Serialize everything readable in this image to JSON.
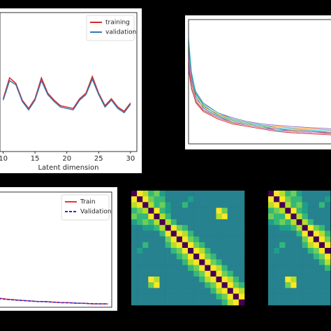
{
  "chart_data": [
    {
      "type": "line",
      "xlabel": "Latent dimension",
      "x": [
        10,
        11,
        12,
        13,
        14,
        15,
        16,
        17,
        18,
        19,
        20,
        21,
        22,
        23,
        24,
        25,
        26,
        27,
        28,
        29,
        30
      ],
      "xlim": [
        9.5,
        31
      ],
      "xticks": [
        10,
        15,
        20,
        25,
        30
      ],
      "ylim": [
        0,
        1
      ],
      "legend": "upper right",
      "series": [
        {
          "name": "training",
          "color": "#d62728",
          "linestyle": "solid",
          "values": [
            0.38,
            0.53,
            0.49,
            0.37,
            0.31,
            0.38,
            0.53,
            0.42,
            0.37,
            0.33,
            0.32,
            0.31,
            0.38,
            0.42,
            0.54,
            0.42,
            0.33,
            0.38,
            0.32,
            0.29,
            0.35
          ]
        },
        {
          "name": "validation",
          "color": "#3b75af",
          "linestyle": "solid",
          "values": [
            0.37,
            0.51,
            0.48,
            0.36,
            0.3,
            0.37,
            0.51,
            0.41,
            0.36,
            0.32,
            0.31,
            0.3,
            0.37,
            0.41,
            0.52,
            0.41,
            0.32,
            0.37,
            0.31,
            0.28,
            0.34
          ]
        }
      ]
    },
    {
      "type": "line",
      "x": [
        0,
        2,
        5,
        10,
        20,
        30,
        40,
        50,
        60,
        70,
        85,
        100
      ],
      "xlim": [
        0,
        100
      ],
      "ylim": [
        0,
        1
      ],
      "series": [
        {
          "color": "#1f77b4",
          "linestyle": "solid",
          "values": [
            0.78,
            0.52,
            0.38,
            0.29,
            0.22,
            0.18,
            0.15,
            0.13,
            0.11,
            0.1,
            0.09,
            0.08
          ]
        },
        {
          "color": "#ff7f0e",
          "linestyle": "solid",
          "values": [
            0.7,
            0.5,
            0.36,
            0.3,
            0.24,
            0.2,
            0.17,
            0.15,
            0.14,
            0.13,
            0.12,
            0.11
          ]
        },
        {
          "color": "#2ca02c",
          "linestyle": "solid",
          "values": [
            0.82,
            0.56,
            0.4,
            0.31,
            0.23,
            0.19,
            0.16,
            0.14,
            0.12,
            0.11,
            0.1,
            0.09
          ]
        },
        {
          "color": "#d62728",
          "linestyle": "solid",
          "values": [
            0.66,
            0.45,
            0.33,
            0.26,
            0.2,
            0.16,
            0.14,
            0.12,
            0.1,
            0.09,
            0.08,
            0.07
          ]
        },
        {
          "color": "#9467bd",
          "linestyle": "solid",
          "values": [
            0.75,
            0.54,
            0.42,
            0.33,
            0.25,
            0.21,
            0.18,
            0.16,
            0.15,
            0.14,
            0.13,
            0.12
          ]
        },
        {
          "color": "#8c564b",
          "linestyle": "solid",
          "values": [
            0.6,
            0.44,
            0.34,
            0.27,
            0.21,
            0.17,
            0.15,
            0.13,
            0.12,
            0.11,
            0.1,
            0.09
          ]
        },
        {
          "color": "#e377c2",
          "linestyle": "solid",
          "values": [
            0.72,
            0.48,
            0.35,
            0.28,
            0.21,
            0.18,
            0.15,
            0.13,
            0.12,
            0.1,
            0.09,
            0.09
          ]
        },
        {
          "color": "#17becf",
          "linestyle": "solid",
          "values": [
            0.85,
            0.58,
            0.41,
            0.32,
            0.25,
            0.2,
            0.17,
            0.15,
            0.13,
            0.12,
            0.11,
            0.1
          ]
        }
      ]
    },
    {
      "type": "line",
      "x": [
        0,
        1,
        2,
        3,
        4,
        5,
        6,
        7,
        8,
        9,
        10,
        11,
        12,
        13,
        14
      ],
      "xlim": [
        0,
        14.5
      ],
      "ylim": [
        0,
        1
      ],
      "legend": "upper right",
      "series": [
        {
          "name": "Train",
          "color": "#e8333c",
          "linestyle": "solid",
          "values": [
            0.08,
            0.07,
            0.065,
            0.06,
            0.055,
            0.05,
            0.05,
            0.045,
            0.04,
            0.04,
            0.035,
            0.035,
            0.03,
            0.03,
            0.03
          ]
        },
        {
          "name": "Validation",
          "color": "#2a2ad0",
          "linestyle": "dashed",
          "values": [
            0.075,
            0.068,
            0.063,
            0.058,
            0.054,
            0.05,
            0.048,
            0.044,
            0.04,
            0.039,
            0.036,
            0.034,
            0.031,
            0.03,
            0.029
          ]
        }
      ]
    },
    {
      "type": "heatmap",
      "colormap": "viridis",
      "clim": [
        0,
        9
      ],
      "matrix": [
        [
          0,
          9,
          8,
          6,
          7,
          5,
          4,
          4,
          4,
          4,
          4,
          4,
          4,
          4,
          4,
          4,
          4,
          4,
          4,
          4
        ],
        [
          9,
          0,
          9,
          7,
          6,
          6,
          4,
          4,
          4,
          4,
          5,
          4,
          4,
          4,
          4,
          4,
          4,
          4,
          4,
          4
        ],
        [
          8,
          9,
          0,
          8,
          6,
          7,
          5,
          4,
          4,
          6,
          4,
          4,
          4,
          4,
          4,
          4,
          4,
          4,
          4,
          4
        ],
        [
          6,
          7,
          8,
          0,
          9,
          6,
          5,
          4,
          4,
          4,
          4,
          4,
          4,
          4,
          4,
          9,
          7,
          4,
          4,
          4
        ],
        [
          7,
          6,
          6,
          9,
          0,
          8,
          6,
          4,
          4,
          4,
          4,
          4,
          4,
          4,
          4,
          8,
          9,
          4,
          4,
          4
        ],
        [
          5,
          6,
          7,
          6,
          8,
          0,
          8,
          6,
          4,
          4,
          4,
          4,
          4,
          4,
          4,
          4,
          4,
          4,
          4,
          4
        ],
        [
          4,
          4,
          5,
          5,
          6,
          8,
          0,
          9,
          7,
          6,
          4,
          4,
          4,
          4,
          4,
          4,
          4,
          4,
          4,
          4
        ],
        [
          4,
          4,
          4,
          4,
          4,
          6,
          9,
          0,
          9,
          8,
          6,
          4,
          4,
          4,
          4,
          4,
          4,
          4,
          4,
          4
        ],
        [
          4,
          4,
          4,
          4,
          4,
          4,
          7,
          9,
          0,
          9,
          7,
          6,
          4,
          4,
          4,
          4,
          4,
          4,
          4,
          4
        ],
        [
          4,
          4,
          6,
          4,
          4,
          4,
          6,
          8,
          9,
          0,
          9,
          7,
          6,
          4,
          4,
          4,
          4,
          4,
          4,
          4
        ],
        [
          4,
          5,
          4,
          4,
          4,
          4,
          4,
          6,
          7,
          9,
          0,
          9,
          8,
          6,
          4,
          4,
          4,
          4,
          4,
          4
        ],
        [
          4,
          4,
          4,
          4,
          4,
          4,
          4,
          4,
          6,
          7,
          9,
          0,
          9,
          7,
          6,
          4,
          4,
          4,
          4,
          4
        ],
        [
          4,
          4,
          4,
          4,
          4,
          4,
          4,
          4,
          4,
          6,
          8,
          9,
          0,
          9,
          7,
          6,
          4,
          4,
          4,
          4
        ],
        [
          4,
          4,
          4,
          4,
          4,
          4,
          4,
          4,
          4,
          4,
          6,
          7,
          9,
          0,
          9,
          8,
          6,
          4,
          4,
          4
        ],
        [
          4,
          4,
          4,
          4,
          4,
          4,
          4,
          4,
          4,
          4,
          4,
          6,
          7,
          9,
          0,
          9,
          7,
          6,
          4,
          4
        ],
        [
          4,
          4,
          4,
          9,
          8,
          4,
          4,
          4,
          4,
          4,
          4,
          4,
          6,
          8,
          9,
          0,
          9,
          8,
          6,
          4
        ],
        [
          4,
          4,
          4,
          7,
          9,
          4,
          4,
          4,
          4,
          4,
          4,
          4,
          4,
          6,
          7,
          9,
          0,
          9,
          7,
          6
        ],
        [
          4,
          4,
          4,
          4,
          4,
          4,
          4,
          4,
          4,
          4,
          4,
          4,
          4,
          4,
          6,
          8,
          9,
          0,
          9,
          8
        ],
        [
          4,
          4,
          4,
          4,
          4,
          4,
          4,
          4,
          4,
          4,
          4,
          4,
          4,
          4,
          4,
          6,
          7,
          9,
          0,
          9
        ],
        [
          4,
          4,
          4,
          4,
          4,
          4,
          4,
          4,
          4,
          4,
          4,
          4,
          4,
          4,
          4,
          4,
          6,
          8,
          9,
          0
        ]
      ]
    },
    {
      "type": "heatmap",
      "colormap": "viridis",
      "clim": [
        0,
        9
      ],
      "matrix": [
        [
          0,
          9,
          8,
          6,
          7,
          5,
          4,
          4,
          4,
          4,
          4
        ],
        [
          9,
          0,
          9,
          7,
          6,
          6,
          4,
          4,
          4,
          4,
          5
        ],
        [
          8,
          9,
          0,
          8,
          6,
          7,
          5,
          4,
          4,
          6,
          4
        ],
        [
          6,
          7,
          8,
          0,
          9,
          6,
          5,
          4,
          4,
          4,
          4
        ],
        [
          7,
          6,
          6,
          9,
          0,
          8,
          6,
          4,
          4,
          4,
          4
        ],
        [
          5,
          6,
          7,
          6,
          8,
          0,
          8,
          6,
          4,
          4,
          4
        ],
        [
          4,
          4,
          5,
          5,
          6,
          8,
          0,
          9,
          7,
          6,
          4
        ],
        [
          4,
          4,
          4,
          4,
          4,
          6,
          9,
          0,
          9,
          8,
          6
        ],
        [
          4,
          4,
          4,
          4,
          4,
          4,
          7,
          9,
          0,
          9,
          7
        ],
        [
          4,
          4,
          6,
          4,
          4,
          4,
          6,
          8,
          9,
          0,
          9
        ],
        [
          4,
          5,
          4,
          4,
          4,
          4,
          4,
          6,
          7,
          9,
          0
        ],
        [
          4,
          4,
          4,
          4,
          4,
          4,
          4,
          4,
          6,
          7,
          9
        ],
        [
          4,
          4,
          4,
          4,
          4,
          4,
          4,
          4,
          4,
          6,
          8
        ],
        [
          4,
          4,
          4,
          4,
          4,
          4,
          4,
          4,
          4,
          4,
          6
        ],
        [
          4,
          4,
          4,
          4,
          4,
          4,
          4,
          4,
          4,
          4,
          4
        ],
        [
          4,
          4,
          4,
          9,
          8,
          4,
          4,
          4,
          4,
          4,
          4
        ],
        [
          4,
          4,
          4,
          7,
          9,
          4,
          4,
          4,
          4,
          4,
          4
        ],
        [
          4,
          4,
          4,
          4,
          4,
          4,
          4,
          4,
          4,
          4,
          4
        ],
        [
          4,
          4,
          4,
          4,
          4,
          4,
          4,
          4,
          4,
          4,
          4
        ],
        [
          4,
          4,
          4,
          4,
          4,
          4,
          4,
          4,
          4,
          4,
          4
        ]
      ]
    }
  ]
}
